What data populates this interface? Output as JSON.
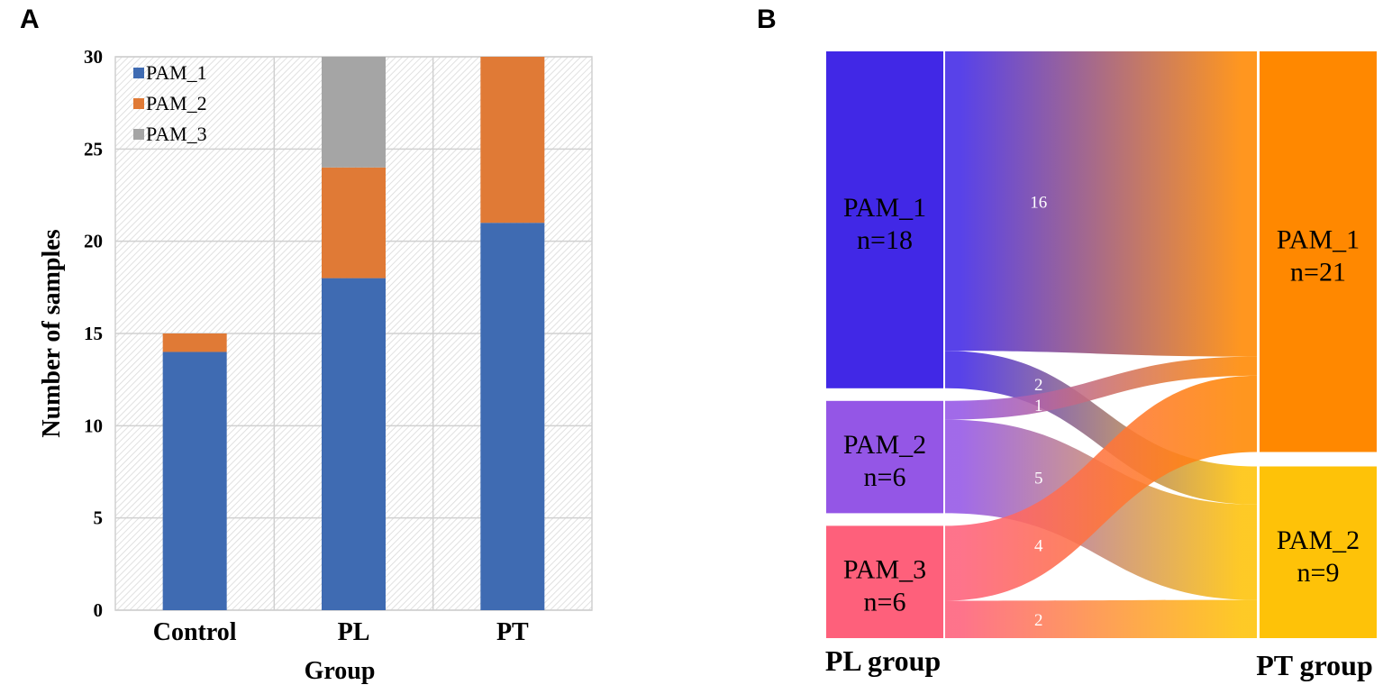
{
  "panels": {
    "a": "A",
    "b": "B"
  },
  "chart_data": [
    {
      "type": "bar",
      "stacked": true,
      "title": "",
      "xlabel": "Group",
      "ylabel": "Number of samples",
      "categories": [
        "Control",
        "PL",
        "PT"
      ],
      "ylim": [
        0,
        30
      ],
      "yticks": [
        0,
        5,
        10,
        15,
        20,
        25,
        30
      ],
      "grid": true,
      "legend_position": "top-left",
      "series": [
        {
          "name": "PAM_1",
          "color": "#3f6bb2",
          "values": [
            14,
            18,
            21
          ]
        },
        {
          "name": "PAM_2",
          "color": "#e07a36",
          "values": [
            1,
            6,
            9
          ]
        },
        {
          "name": "PAM_3",
          "color": "#a5a5a5",
          "values": [
            0,
            6,
            0
          ]
        }
      ]
    },
    {
      "type": "sankey",
      "left_axis_label": "PL group",
      "right_axis_label": "PT group",
      "left_nodes": [
        {
          "id": "L1",
          "name": "PAM_1",
          "count_label": "n=18",
          "value": 18,
          "color": "#4128e6"
        },
        {
          "id": "L2",
          "name": "PAM_2",
          "count_label": "n=6",
          "value": 6,
          "color": "#9456e6"
        },
        {
          "id": "L3",
          "name": "PAM_3",
          "count_label": "n=6",
          "value": 6,
          "color": "#fe607b"
        }
      ],
      "right_nodes": [
        {
          "id": "R1",
          "name": "PAM_1",
          "count_label": "n=21",
          "value": 21,
          "color": "#ff8800"
        },
        {
          "id": "R2",
          "name": "PAM_2",
          "count_label": "n=9",
          "value": 9,
          "color": "#fec208"
        }
      ],
      "flows": [
        {
          "source": "L1",
          "target": "R1",
          "value": 16,
          "label": "16"
        },
        {
          "source": "L1",
          "target": "R2",
          "value": 2,
          "label": "2"
        },
        {
          "source": "L2",
          "target": "R1",
          "value": 1,
          "label": "1"
        },
        {
          "source": "L2",
          "target": "R2",
          "value": 5,
          "label": "5"
        },
        {
          "source": "L3",
          "target": "R1",
          "value": 4,
          "label": "4"
        },
        {
          "source": "L3",
          "target": "R2",
          "value": 2,
          "label": "2"
        }
      ]
    }
  ]
}
